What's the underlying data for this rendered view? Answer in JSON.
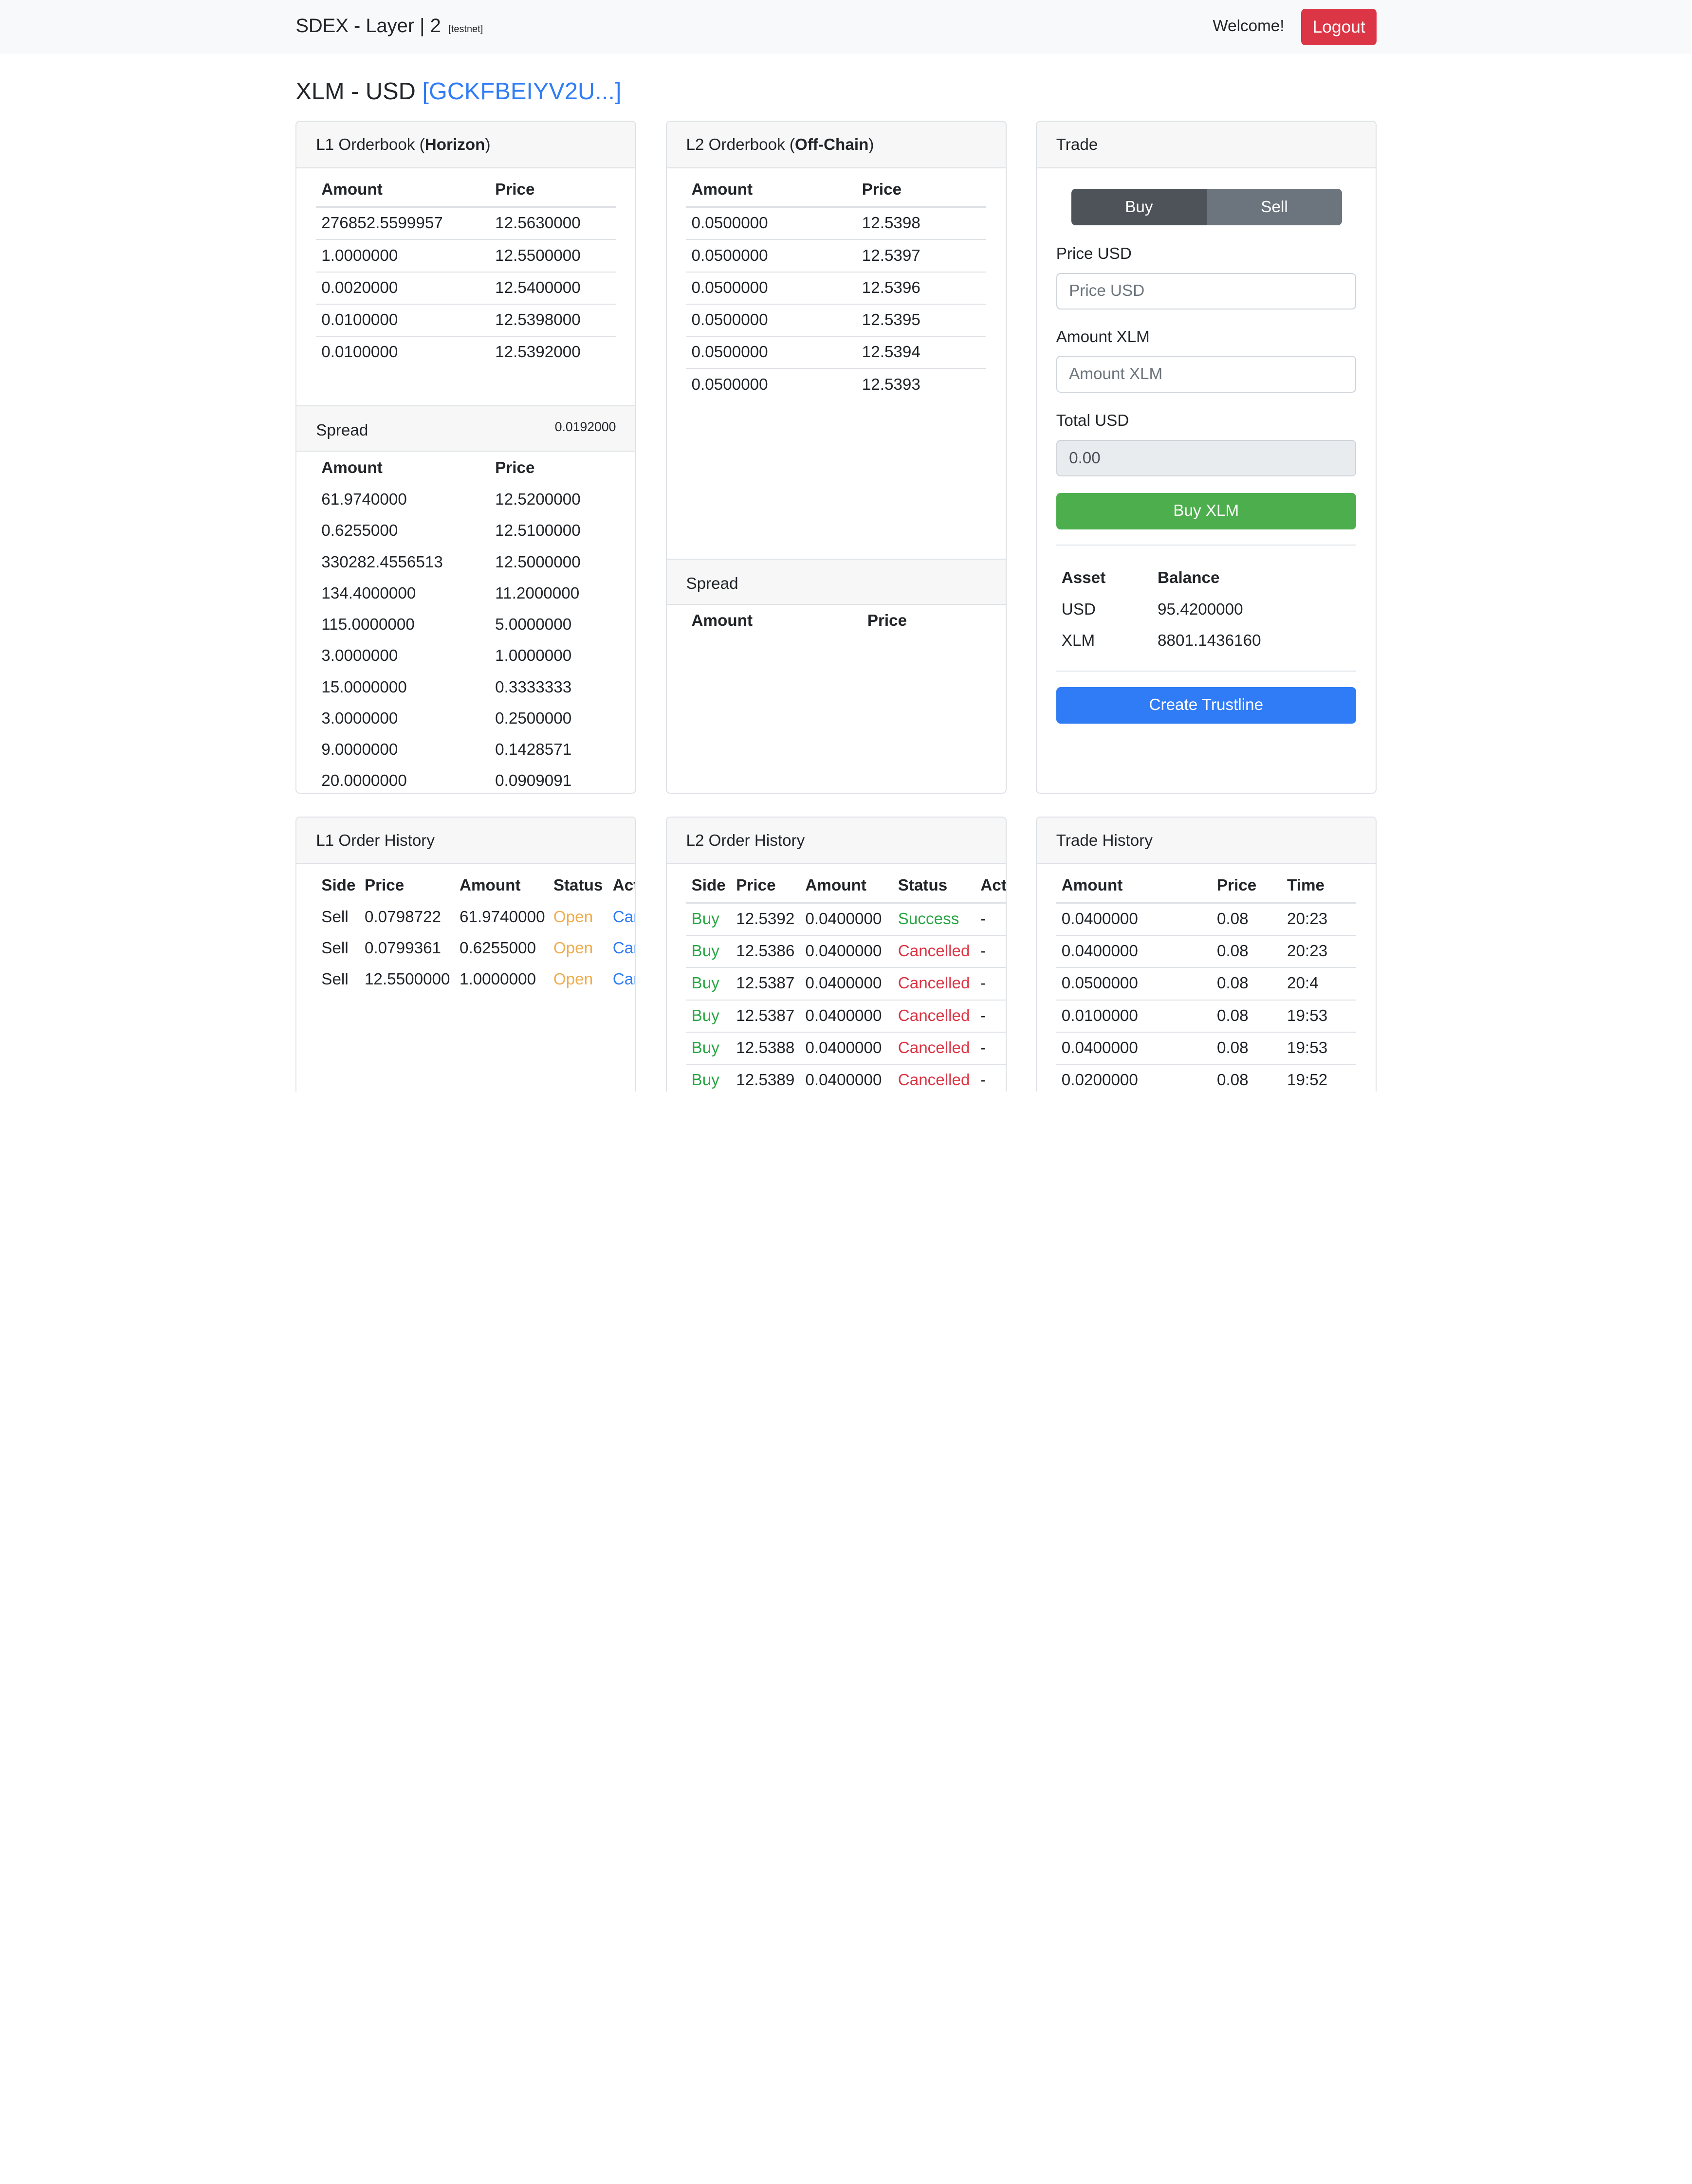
{
  "nav": {
    "brand": "SDEX - Layer | 2",
    "brand_tag": "[testnet]",
    "welcome": "Welcome!",
    "logout_label": "Logout"
  },
  "pair": {
    "name": "XLM - USD",
    "account_link": "[GCKFBEIYV2U...]"
  },
  "l1_orderbook": {
    "title_prefix": "L1 Orderbook (",
    "title_bold": "Horizon",
    "title_suffix": ")",
    "col_amount": "Amount",
    "col_price": "Price",
    "asks": [
      {
        "amount": "276852.5599957",
        "price": "12.5630000"
      },
      {
        "amount": "1.0000000",
        "price": "12.5500000"
      },
      {
        "amount": "0.0020000",
        "price": "12.5400000"
      },
      {
        "amount": "0.0100000",
        "price": "12.5398000"
      },
      {
        "amount": "0.0100000",
        "price": "12.5392000"
      }
    ],
    "spread_label": "Spread",
    "spread_value": "0.0192000",
    "bids": [
      {
        "amount": "61.9740000",
        "price": "12.5200000"
      },
      {
        "amount": "0.6255000",
        "price": "12.5100000"
      },
      {
        "amount": "330282.4556513",
        "price": "12.5000000"
      },
      {
        "amount": "134.4000000",
        "price": "11.2000000"
      },
      {
        "amount": "115.0000000",
        "price": "5.0000000"
      },
      {
        "amount": "3.0000000",
        "price": "1.0000000"
      },
      {
        "amount": "15.0000000",
        "price": "0.3333333"
      },
      {
        "amount": "3.0000000",
        "price": "0.2500000"
      },
      {
        "amount": "9.0000000",
        "price": "0.1428571"
      },
      {
        "amount": "20.0000000",
        "price": "0.0909091"
      }
    ]
  },
  "l2_orderbook": {
    "title_prefix": "L2 Orderbook (",
    "title_bold": "Off-Chain",
    "title_suffix": ")",
    "col_amount": "Amount",
    "col_price": "Price",
    "asks": [
      {
        "amount": "0.0500000",
        "price": "12.5398"
      },
      {
        "amount": "0.0500000",
        "price": "12.5397"
      },
      {
        "amount": "0.0500000",
        "price": "12.5396"
      },
      {
        "amount": "0.0500000",
        "price": "12.5395"
      },
      {
        "amount": "0.0500000",
        "price": "12.5394"
      },
      {
        "amount": "0.0500000",
        "price": "12.5393"
      }
    ],
    "spread_label": "Spread"
  },
  "trade": {
    "title": "Trade",
    "buy_tab": "Buy",
    "sell_tab": "Sell",
    "price_label": "Price USD",
    "price_placeholder": "Price USD",
    "amount_label": "Amount XLM",
    "amount_placeholder": "Amount XLM",
    "total_label": "Total USD",
    "total_value": "0.00",
    "submit_label": "Buy XLM",
    "col_asset": "Asset",
    "col_balance": "Balance",
    "balances": [
      {
        "asset": "USD",
        "balance": "95.4200000"
      },
      {
        "asset": "XLM",
        "balance": "8801.1436160"
      }
    ],
    "trustline_label": "Create Trustline"
  },
  "l1_history": {
    "title": "L1 Order History",
    "cols": [
      "Side",
      "Price",
      "Amount",
      "Status",
      "Act"
    ],
    "rows": [
      {
        "side": "Sell",
        "price": "0.0798722",
        "amount": "61.9740000",
        "status": "Open",
        "action": "Car"
      },
      {
        "side": "Sell",
        "price": "0.0799361",
        "amount": "0.6255000",
        "status": "Open",
        "action": "Car"
      },
      {
        "side": "Sell",
        "price": "12.5500000",
        "amount": "1.0000000",
        "status": "Open",
        "action": "Car"
      }
    ]
  },
  "l2_history": {
    "title": "L2 Order History",
    "cols": [
      "Side",
      "Price",
      "Amount",
      "Status",
      "Actic"
    ],
    "rows": [
      {
        "side": "Buy",
        "price": "12.5392",
        "amount": "0.0400000",
        "status": "Success",
        "action": "-"
      },
      {
        "side": "Buy",
        "price": "12.5386",
        "amount": "0.0400000",
        "status": "Cancelled",
        "action": "-"
      },
      {
        "side": "Buy",
        "price": "12.5387",
        "amount": "0.0400000",
        "status": "Cancelled",
        "action": "-"
      },
      {
        "side": "Buy",
        "price": "12.5387",
        "amount": "0.0400000",
        "status": "Cancelled",
        "action": "-"
      },
      {
        "side": "Buy",
        "price": "12.5388",
        "amount": "0.0400000",
        "status": "Cancelled",
        "action": "-"
      },
      {
        "side": "Buy",
        "price": "12.5389",
        "amount": "0.0400000",
        "status": "Cancelled",
        "action": "-"
      }
    ]
  },
  "trade_history": {
    "title": "Trade History",
    "cols": [
      "Amount",
      "Price",
      "Time"
    ],
    "rows": [
      {
        "amount": "0.0400000",
        "price": "0.08",
        "time": "20:23"
      },
      {
        "amount": "0.0400000",
        "price": "0.08",
        "time": "20:23"
      },
      {
        "amount": "0.0500000",
        "price": "0.08",
        "time": "20:4"
      },
      {
        "amount": "0.0100000",
        "price": "0.08",
        "time": "19:53"
      },
      {
        "amount": "0.0400000",
        "price": "0.08",
        "time": "19:53"
      },
      {
        "amount": "0.0200000",
        "price": "0.08",
        "time": "19:52"
      }
    ]
  },
  "colors": {
    "buy": "#28a745",
    "cancelled": "#dc3545",
    "open": "#f0ad4e",
    "link": "#2f7cf6",
    "danger": "#dc3545",
    "success_button": "#4cae4c"
  }
}
